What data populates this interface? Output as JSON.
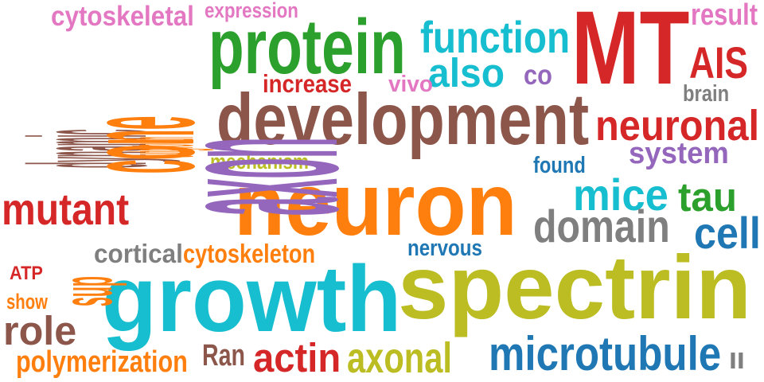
{
  "palette": {
    "pink": "#e377c2",
    "green": "#2ca02c",
    "cyan": "#17becf",
    "red": "#d62728",
    "brown": "#8c564b",
    "orange": "#ff7f0e",
    "purple": "#9467bd",
    "olive": "#bcbd22",
    "blue": "#1f77b4",
    "gray": "#7f7f7f"
  },
  "words": [
    {
      "id": "cytoskeletal",
      "text": "cytoskeletal",
      "color": "#e377c2"
    },
    {
      "id": "expression",
      "text": "expression",
      "color": "#e377c2"
    },
    {
      "id": "result",
      "text": "result",
      "color": "#e377c2"
    },
    {
      "id": "protein",
      "text": "protein",
      "color": "#2ca02c"
    },
    {
      "id": "function",
      "text": "function",
      "color": "#17becf"
    },
    {
      "id": "mt",
      "text": "MT",
      "color": "#d62728"
    },
    {
      "id": "ais",
      "text": "AIS",
      "color": "#d62728"
    },
    {
      "id": "also",
      "text": "also",
      "color": "#17becf"
    },
    {
      "id": "co",
      "text": "co",
      "color": "#9467bd"
    },
    {
      "id": "increase",
      "text": "increase",
      "color": "#d62728"
    },
    {
      "id": "vivo",
      "text": "vivo",
      "color": "#e377c2"
    },
    {
      "id": "brain",
      "text": "brain",
      "color": "#7f7f7f"
    },
    {
      "id": "development",
      "text": "development",
      "color": "#8c564b"
    },
    {
      "id": "neuronal",
      "text": "neuronal",
      "color": "#d62728"
    },
    {
      "id": "system",
      "text": "system",
      "color": "#9467bd"
    },
    {
      "id": "mechanism",
      "text": "mechanism",
      "color": "#bcbd22"
    },
    {
      "id": "found",
      "text": "found",
      "color": "#1f77b4"
    },
    {
      "id": "neuron",
      "text": "neuron",
      "color": "#ff7f0e"
    },
    {
      "id": "mice",
      "text": "mice",
      "color": "#17becf"
    },
    {
      "id": "tau",
      "text": "tau",
      "color": "#2ca02c"
    },
    {
      "id": "mutant",
      "text": "mutant",
      "color": "#d62728"
    },
    {
      "id": "domain",
      "text": "domain",
      "color": "#7f7f7f"
    },
    {
      "id": "cell",
      "text": "cell",
      "color": "#1f77b4"
    },
    {
      "id": "cortical",
      "text": "cortical",
      "color": "#7f7f7f"
    },
    {
      "id": "cytoskeleton",
      "text": "cytoskeleton",
      "color": "#ff7f0e"
    },
    {
      "id": "nervous",
      "text": "nervous",
      "color": "#1f77b4"
    },
    {
      "id": "atp",
      "text": "ATP",
      "color": "#d62728"
    },
    {
      "id": "show",
      "text": "show",
      "color": "#ff7f0e"
    },
    {
      "id": "growth",
      "text": "growth",
      "color": "#17becf"
    },
    {
      "id": "spectrin",
      "text": "spectrin",
      "color": "#bcbd22"
    },
    {
      "id": "role",
      "text": "role",
      "color": "#8c564b"
    },
    {
      "id": "polymerization",
      "text": "polymerization",
      "color": "#ff7f0e"
    },
    {
      "id": "ran",
      "text": "Ran",
      "color": "#8c564b"
    },
    {
      "id": "actin",
      "text": "actin",
      "color": "#d62728"
    },
    {
      "id": "axonal",
      "text": "axonal",
      "color": "#bcbd22"
    },
    {
      "id": "microtubule",
      "text": "microtubule",
      "color": "#1f77b4"
    },
    {
      "id": "ii",
      "text": "II",
      "color": "#7f7f7f"
    },
    {
      "id": "dynamic",
      "text": "dynamic",
      "color": "#8c564b"
    },
    {
      "id": "cone",
      "text": "cone",
      "color": "#ff7f0e"
    },
    {
      "id": "outgrowth",
      "text": "outgrowth",
      "color": "#ff7f0e"
    },
    {
      "id": "axon",
      "text": "axon",
      "color": "#9467bd"
    },
    {
      "id": "sup",
      "text": "sup",
      "color": "#ff7f0e"
    }
  ]
}
